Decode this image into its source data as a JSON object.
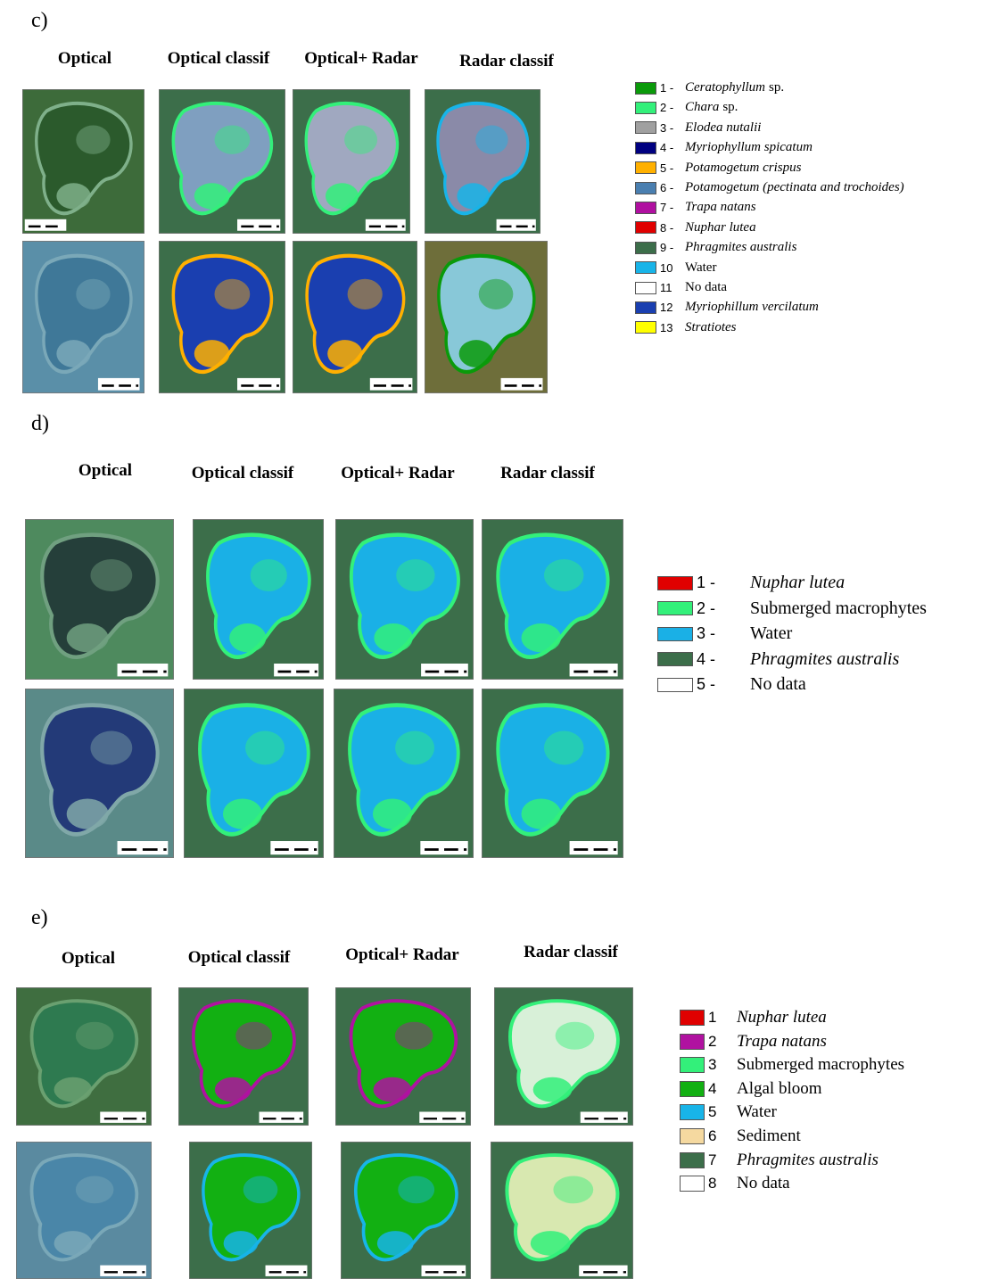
{
  "panels": [
    {
      "label": "c)",
      "columns": [
        "Optical",
        "Optical classif",
        "Optical+ Radar",
        "Radar classif"
      ],
      "legend": [
        {
          "number": "1 -",
          "name": "Ceratophyllum",
          "suffix": "sp.",
          "italic": true,
          "color": "#0a9a0a"
        },
        {
          "number": "2 -",
          "name": "Chara",
          "suffix": "sp.",
          "italic": true,
          "color": "#33f07a"
        },
        {
          "number": "3 -",
          "name": "Elodea nutalii",
          "italic": true,
          "color": "#a0a0a0"
        },
        {
          "number": "4 -",
          "name": "Myriophyllum spicatum",
          "italic": true,
          "color": "#000080"
        },
        {
          "number": "5 -",
          "name": "Potamogetum crispus",
          "italic": true,
          "color": "#ffb000"
        },
        {
          "number": "6 -",
          "name": "Potamogetum (pectinata and trochoides)",
          "italic": true,
          "color": "#4a7fb0"
        },
        {
          "number": "7 -",
          "name": "Trapa natans",
          "italic": true,
          "color": "#b010a0"
        },
        {
          "number": "8 -",
          "name": "Nuphar lutea",
          "italic": true,
          "color": "#e00000"
        },
        {
          "number": "9 -",
          "name": "Phragmites australis",
          "italic": true,
          "color": "#3c6e4a"
        },
        {
          "number": "10",
          "name": "Water",
          "italic": false,
          "color": "#18b4e8"
        },
        {
          "number": "11",
          "name": "No data",
          "italic": false,
          "color": "#ffffff"
        },
        {
          "number": "12",
          "name": "Myriophillum vercilatum",
          "italic": true,
          "color": "#1a3fb0"
        },
        {
          "number": "13",
          "name": "Stratiotes",
          "italic": true,
          "color": "#ffff00"
        }
      ]
    },
    {
      "label": "d)",
      "columns": [
        "Optical",
        "Optical classif",
        "Optical+ Radar",
        "Radar classif"
      ],
      "legend": [
        {
          "number": "1 -",
          "name": "Nuphar lutea",
          "italic": true,
          "color": "#e00000"
        },
        {
          "number": "2 -",
          "name": "Submerged macrophytes",
          "italic": false,
          "color": "#33f07a"
        },
        {
          "number": "3 -",
          "name": "Water",
          "italic": false,
          "color": "#1ab0e6"
        },
        {
          "number": "4 -",
          "name": "Phragmites australis",
          "italic": true,
          "color": "#3c6e4a"
        },
        {
          "number": "5 -",
          "name": "No data",
          "italic": false,
          "color": "#ffffff"
        }
      ]
    },
    {
      "label": "e)",
      "columns": [
        "Optical",
        "Optical classif",
        "Optical+ Radar",
        "Radar classif"
      ],
      "legend": [
        {
          "number": "1",
          "name": "Nuphar lutea",
          "italic": true,
          "color": "#e00000"
        },
        {
          "number": "2",
          "name": "Trapa natans",
          "italic": true,
          "color": "#b012a0"
        },
        {
          "number": "3",
          "name": "Submerged macrophytes",
          "italic": false,
          "color": "#33f07a"
        },
        {
          "number": "4",
          "name": "Algal bloom",
          "italic": false,
          "color": "#12b012"
        },
        {
          "number": "5",
          "name": "Water",
          "italic": false,
          "color": "#18b4e8"
        },
        {
          "number": "6",
          "name": "Sediment",
          "italic": false,
          "color": "#f5d9a0"
        },
        {
          "number": "7",
          "name": "Phragmites australis",
          "italic": true,
          "color": "#3c6e4a"
        },
        {
          "number": "8",
          "name": "No data",
          "italic": false,
          "color": "#ffffff"
        }
      ]
    }
  ]
}
